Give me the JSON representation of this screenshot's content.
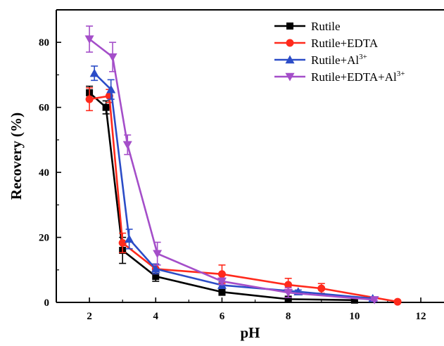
{
  "chart_data": {
    "type": "line",
    "title": "",
    "xlabel": "pH",
    "ylabel": "Recovery (%)",
    "xlim": [
      1,
      12.7
    ],
    "ylim": [
      0,
      90
    ],
    "xticks": [
      2,
      4,
      6,
      8,
      10,
      12
    ],
    "yticks": [
      0,
      20,
      40,
      60,
      80
    ],
    "grid": false,
    "legend_position": "top-right",
    "series": [
      {
        "name": "Rutile",
        "color": "#000000",
        "marker": "square",
        "x": [
          2.0,
          2.5,
          3.0,
          4.0,
          6.0,
          8.0,
          10.0
        ],
        "y": [
          64.5,
          60,
          16,
          8,
          3.2,
          1.0,
          0.7
        ],
        "err": [
          2,
          2,
          4,
          1.5,
          1,
          0.5,
          0.3
        ]
      },
      {
        "name": "Rutile+EDTA",
        "name_sup": "",
        "color": "#ff2a1c",
        "marker": "circle",
        "x": [
          2.0,
          2.6,
          3.0,
          4.0,
          6.0,
          8.0,
          9.0,
          11.3
        ],
        "y": [
          62.5,
          63.5,
          18.3,
          10.3,
          8.7,
          5.4,
          4.3,
          0.2
        ],
        "err": [
          3.5,
          2,
          3,
          1.5,
          2.8,
          2,
          1.5,
          0.3
        ]
      },
      {
        "name": "Rutile+Al",
        "name_sup": "3+",
        "color": "#2b4cc7",
        "marker": "triangle-up",
        "x": [
          2.15,
          2.65,
          3.2,
          4.0,
          6.0,
          8.3,
          10.55
        ],
        "y": [
          70.5,
          65.5,
          19.5,
          10.3,
          5.3,
          3.3,
          1.2
        ],
        "err": [
          2.2,
          3,
          3,
          1.5,
          1,
          0.5,
          0.3
        ]
      },
      {
        "name": "Rutile+EDTA+Al",
        "name_sup": "3+",
        "color": "#a44ec9",
        "marker": "triangle-down",
        "x": [
          2.0,
          2.7,
          3.15,
          4.05,
          6.0,
          8.0,
          10.6
        ],
        "y": [
          81,
          75.5,
          48.5,
          15,
          6.5,
          3,
          0.8
        ],
        "err": [
          4,
          4.5,
          3,
          3.5,
          1,
          1.5,
          0.3
        ]
      }
    ]
  }
}
